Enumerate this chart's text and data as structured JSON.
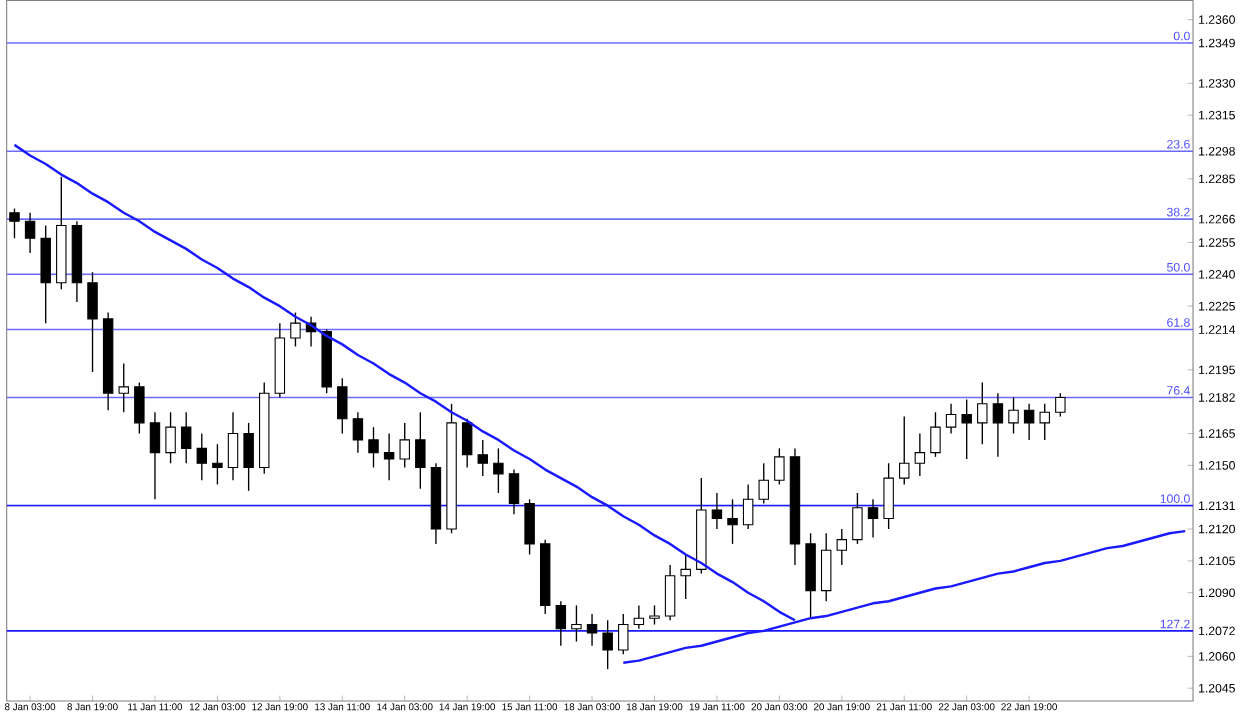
{
  "chart_data": {
    "type": "candlestick",
    "color": "#000000",
    "categories": [
      null,
      "8 Jan 03:00",
      null,
      null,
      null,
      "8 Jan 19:00",
      null,
      null,
      null,
      "11 Jan 11:00",
      null,
      null,
      null,
      "12 Jan 03:00",
      null,
      null,
      null,
      "12 Jan 19:00",
      null,
      null,
      null,
      "13 Jan 11:00",
      null,
      null,
      null,
      "14 Jan 03:00",
      null,
      null,
      null,
      "14 Jan 19:00",
      null,
      null,
      null,
      "15 Jan 11:00",
      null,
      null,
      null,
      "18 Jan 03:00",
      null,
      null,
      null,
      "18 Jan 19:00",
      null,
      null,
      null,
      "19 Jan 11:00",
      null,
      null,
      null,
      "20 Jan 03:00",
      null,
      null,
      null,
      "20 Jan 19:00",
      null,
      null,
      null,
      "21 Jan 11:00",
      null,
      null,
      null,
      "22 Jan 03:00",
      null,
      null,
      null,
      "22 Jan 19:00",
      null,
      null,
      null,
      null,
      null,
      null,
      null,
      null,
      null,
      null
    ],
    "ohlc": [
      [
        1.2269,
        1.2271,
        1.2257,
        1.2265
      ],
      [
        1.2265,
        1.2269,
        1.225,
        1.2257
      ],
      [
        1.2257,
        1.2263,
        1.2217,
        1.2236
      ],
      [
        1.2236,
        1.2286,
        1.2233,
        1.2263
      ],
      [
        1.2263,
        1.2265,
        1.2227,
        1.2236
      ],
      [
        1.2236,
        1.2241,
        1.2194,
        1.2219
      ],
      [
        1.2219,
        1.2222,
        1.2176,
        1.2184
      ],
      [
        1.2184,
        1.2198,
        1.2175,
        1.2187
      ],
      [
        1.2187,
        1.2189,
        1.2165,
        1.217
      ],
      [
        1.217,
        1.2175,
        1.2134,
        1.2156
      ],
      [
        1.2156,
        1.2175,
        1.2151,
        1.2168
      ],
      [
        1.2168,
        1.2175,
        1.2151,
        1.2158
      ],
      [
        1.2158,
        1.2165,
        1.2143,
        1.2151
      ],
      [
        1.2151,
        1.216,
        1.2141,
        1.2149
      ],
      [
        1.2149,
        1.2175,
        1.2143,
        1.2165
      ],
      [
        1.2165,
        1.217,
        1.2138,
        1.2149
      ],
      [
        1.2149,
        1.2189,
        1.2146,
        1.2184
      ],
      [
        1.2184,
        1.2217,
        1.2182,
        1.221
      ],
      [
        1.221,
        1.2222,
        1.2206,
        1.2217
      ],
      [
        1.2217,
        1.222,
        1.2206,
        1.2213
      ],
      [
        1.2213,
        1.2214,
        1.2184,
        1.2187
      ],
      [
        1.2187,
        1.2191,
        1.2165,
        1.2172
      ],
      [
        1.2172,
        1.2175,
        1.2156,
        1.2162
      ],
      [
        1.2162,
        1.2168,
        1.2149,
        1.2156
      ],
      [
        1.2156,
        1.2165,
        1.2143,
        1.2153
      ],
      [
        1.2153,
        1.217,
        1.2149,
        1.2162
      ],
      [
        1.2162,
        1.2175,
        1.2139,
        1.2149
      ],
      [
        1.2149,
        1.2151,
        1.2113,
        1.212
      ],
      [
        1.212,
        1.2179,
        1.2118,
        1.217
      ],
      [
        1.217,
        1.2172,
        1.2149,
        1.2155
      ],
      [
        1.2155,
        1.2162,
        1.2145,
        1.2151
      ],
      [
        1.2151,
        1.2158,
        1.2137,
        1.2146
      ],
      [
        1.2146,
        1.2148,
        1.2127,
        1.2132
      ],
      [
        1.2132,
        1.2134,
        1.2108,
        1.2113
      ],
      [
        1.2113,
        1.2115,
        1.208,
        1.2084
      ],
      [
        1.2084,
        1.2086,
        1.2065,
        1.2073
      ],
      [
        1.2073,
        1.2084,
        1.2067,
        1.2075
      ],
      [
        1.2075,
        1.208,
        1.2065,
        1.2071
      ],
      [
        1.2071,
        1.2077,
        1.2054,
        1.2063
      ],
      [
        1.2063,
        1.208,
        1.2061,
        1.2075
      ],
      [
        1.2075,
        1.2084,
        1.2073,
        1.2078
      ],
      [
        1.2078,
        1.2084,
        1.2075,
        1.2079
      ],
      [
        1.2079,
        1.2103,
        1.2077,
        1.2098
      ],
      [
        1.2098,
        1.2108,
        1.2087,
        1.2101
      ],
      [
        1.2101,
        1.2144,
        1.2099,
        1.2129
      ],
      [
        1.2129,
        1.2137,
        1.212,
        1.2125
      ],
      [
        1.2125,
        1.2134,
        1.2113,
        1.2122
      ],
      [
        1.2122,
        1.2141,
        1.212,
        1.2134
      ],
      [
        1.2134,
        1.2151,
        1.2132,
        1.2143
      ],
      [
        1.2143,
        1.2158,
        1.2141,
        1.2154
      ],
      [
        1.2154,
        1.2158,
        1.2103,
        1.2113
      ],
      [
        1.2113,
        1.2118,
        1.2078,
        1.2091
      ],
      [
        1.2091,
        1.2118,
        1.2086,
        1.211
      ],
      [
        1.211,
        1.212,
        1.2103,
        1.2115
      ],
      [
        1.2115,
        1.2137,
        1.2113,
        1.213
      ],
      [
        1.213,
        1.2134,
        1.2116,
        1.2125
      ],
      [
        1.2125,
        1.2151,
        1.212,
        1.2144
      ],
      [
        1.2144,
        1.2173,
        1.2141,
        1.2151
      ],
      [
        1.2151,
        1.2165,
        1.2145,
        1.2156
      ],
      [
        1.2156,
        1.2175,
        1.2154,
        1.2168
      ],
      [
        1.2168,
        1.2179,
        1.2165,
        1.2174
      ],
      [
        1.2174,
        1.2181,
        1.2153,
        1.217
      ],
      [
        1.217,
        1.2189,
        1.216,
        1.2179
      ],
      [
        1.2179,
        1.2184,
        1.2154,
        1.217
      ],
      [
        1.217,
        1.2182,
        1.2165,
        1.2176
      ],
      [
        1.2176,
        1.2179,
        1.2162,
        1.217
      ],
      [
        1.217,
        1.2179,
        1.2162,
        1.2175
      ],
      [
        1.2175,
        1.2184,
        1.2173,
        1.2182
      ],
      null,
      null,
      null,
      null,
      null,
      null,
      null,
      null
    ],
    "series": [
      {
        "type": "line",
        "color": "#1a1aff",
        "values": [
          1.2301,
          1.2296,
          1.2292,
          1.2287,
          1.2283,
          1.2278,
          1.2274,
          1.2269,
          1.2265,
          1.226,
          1.2256,
          1.2252,
          1.2247,
          1.2243,
          1.2238,
          1.2234,
          1.2229,
          1.2225,
          1.222,
          1.2216,
          1.2211,
          1.2207,
          1.2202,
          1.2198,
          1.2193,
          1.2189,
          1.2184,
          1.218,
          1.2175,
          1.2171,
          1.2166,
          1.2162,
          1.2157,
          1.2153,
          1.2148,
          1.2144,
          1.214,
          1.2135,
          1.2131,
          1.2126,
          1.2122,
          1.2117,
          1.2113,
          1.2108,
          1.2104,
          1.2099,
          1.2095,
          1.209,
          1.2086,
          1.2081,
          1.2077,
          null,
          null,
          null,
          null,
          null,
          null,
          null,
          null,
          null,
          null,
          null,
          null,
          null,
          null,
          null,
          null,
          null,
          null,
          null,
          null,
          null,
          null,
          null,
          null,
          null
        ]
      },
      {
        "type": "line",
        "color": "#1a1aff",
        "values": [
          null,
          null,
          null,
          null,
          null,
          null,
          null,
          null,
          null,
          null,
          null,
          null,
          null,
          null,
          null,
          null,
          null,
          null,
          null,
          null,
          null,
          null,
          null,
          null,
          null,
          null,
          null,
          null,
          null,
          null,
          null,
          null,
          null,
          null,
          null,
          null,
          null,
          null,
          null,
          1.2057,
          1.2058,
          1.206,
          1.2062,
          1.2064,
          1.2065,
          1.2067,
          1.2069,
          1.2071,
          1.2072,
          1.2074,
          1.2076,
          1.2078,
          1.2079,
          1.2081,
          1.2083,
          1.2085,
          1.2086,
          1.2088,
          1.209,
          1.2092,
          1.2093,
          1.2095,
          1.2097,
          1.2099,
          1.21,
          1.2102,
          1.2104,
          1.2105,
          1.2107,
          1.2109,
          1.2111,
          1.2112,
          1.2114,
          1.2116,
          1.2118,
          1.2119
        ]
      }
    ],
    "ylim": [
      1.2039,
      1.2369
    ],
    "yticks": [
      {
        "value": 1.236,
        "label": "1.2360"
      },
      {
        "value": 1.2349,
        "label": "1.2349"
      },
      {
        "value": 1.233,
        "label": "1.2330"
      },
      {
        "value": 1.2315,
        "label": "1.2315"
      },
      {
        "value": 1.2298,
        "label": "1.2298"
      },
      {
        "value": 1.2285,
        "label": "1.2285"
      },
      {
        "value": 1.2266,
        "label": "1.2266"
      },
      {
        "value": 1.2255,
        "label": "1.2255"
      },
      {
        "value": 1.224,
        "label": "1.2240"
      },
      {
        "value": 1.2225,
        "label": "1.2225"
      },
      {
        "value": 1.2214,
        "label": "1.2214"
      },
      {
        "value": 1.2195,
        "label": "1.2195"
      },
      {
        "value": 1.2182,
        "label": "1.2182"
      },
      {
        "value": 1.2165,
        "label": "1.2165"
      },
      {
        "value": 1.215,
        "label": "1.2150"
      },
      {
        "value": 1.2131,
        "label": "1.2131"
      },
      {
        "value": 1.212,
        "label": "1.2120"
      },
      {
        "value": 1.2105,
        "label": "1.2105"
      },
      {
        "value": 1.209,
        "label": "1.2090"
      },
      {
        "value": 1.2072,
        "label": "1.2072"
      },
      {
        "value": 1.206,
        "label": "1.2060"
      },
      {
        "value": 1.2045,
        "label": "1.2045"
      }
    ],
    "ref_lines": [
      {
        "axis": "y",
        "value": 1.2349,
        "color": "#6b6bff"
      },
      {
        "axis": "y",
        "value": 1.2298,
        "color": "#6b6bff"
      },
      {
        "axis": "y",
        "value": 1.2266,
        "color": "#6b6bff"
      },
      {
        "axis": "y",
        "value": 1.224,
        "color": "#6b6bff"
      },
      {
        "axis": "y",
        "value": 1.2214,
        "color": "#6b6bff"
      },
      {
        "axis": "y",
        "value": 1.2182,
        "color": "#6b6bff"
      },
      {
        "axis": "y",
        "value": 1.2131,
        "color": "#1a1aff"
      },
      {
        "axis": "y",
        "value": 1.2072,
        "color": "#1a1aff"
      }
    ],
    "annotations": [
      {
        "text": "0.0",
        "y": 1.2349
      },
      {
        "text": "23.6",
        "y": 1.2298
      },
      {
        "text": "38.2",
        "y": 1.2266
      },
      {
        "text": "50.0",
        "y": 1.224
      },
      {
        "text": "61.8",
        "y": 1.2214
      },
      {
        "text": "76.4",
        "y": 1.2182
      },
      {
        "text": "100.0",
        "y": 1.2131
      },
      {
        "text": "127.2",
        "y": 1.2072
      }
    ]
  }
}
